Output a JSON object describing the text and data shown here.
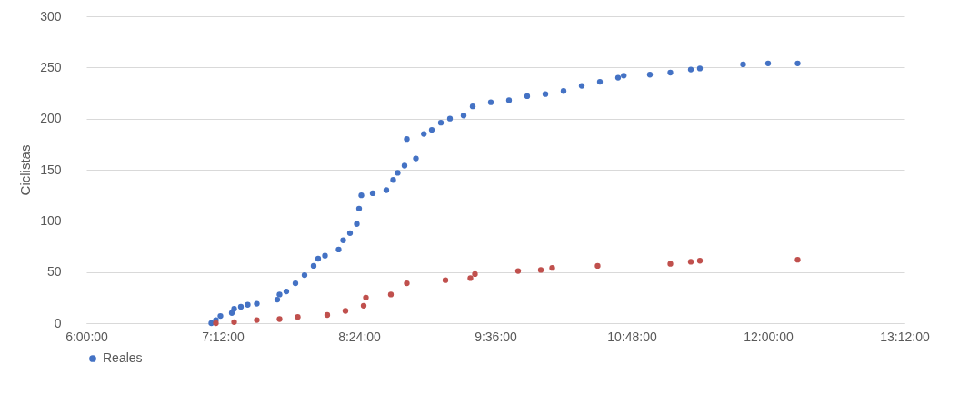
{
  "chart_data": {
    "type": "scatter",
    "ylabel": "Ciclistas",
    "xlim": [
      6,
      13.2
    ],
    "xticks": [
      {
        "value": 6,
        "label": "6:00:00"
      },
      {
        "value": 7.2,
        "label": "7:12:00"
      },
      {
        "value": 8.4,
        "label": "8:24:00"
      },
      {
        "value": 9.6,
        "label": "9:36:00"
      },
      {
        "value": 10.8,
        "label": "10:48:00"
      },
      {
        "value": 12,
        "label": "12:00:00"
      },
      {
        "value": 13.2,
        "label": "13:12:00"
      }
    ],
    "ylim": [
      0,
      300
    ],
    "yticks": [
      0,
      50,
      100,
      150,
      200,
      250,
      300
    ],
    "grid": "y",
    "legend": "bottom",
    "marker": "circle",
    "series": [
      {
        "name": "Reales",
        "color": "#4472c4",
        "x": [
          7.1,
          7.14,
          7.18,
          7.28,
          7.3,
          7.36,
          7.42,
          7.5,
          7.68,
          7.7,
          7.76,
          7.84,
          7.92,
          8.0,
          8.04,
          8.1,
          8.22,
          8.26,
          8.32,
          8.38,
          8.4,
          8.42,
          8.52,
          8.64,
          8.7,
          8.74,
          8.8,
          8.82,
          8.9,
          8.97,
          9.04,
          9.12,
          9.2,
          9.32,
          9.4,
          9.56,
          9.72,
          9.88,
          10.04,
          10.2,
          10.36,
          10.52,
          10.68,
          10.73,
          10.96,
          11.14,
          11.32,
          11.4,
          11.78,
          12.0,
          12.26
        ],
        "values": [
          0,
          3,
          7,
          10,
          14,
          16,
          18,
          19,
          23,
          28,
          31,
          39,
          47,
          56,
          63,
          66,
          72,
          81,
          88,
          97,
          112,
          125,
          127,
          130,
          140,
          147,
          154,
          180,
          161,
          185,
          189,
          196,
          200,
          203,
          212,
          216,
          218,
          222,
          224,
          227,
          232,
          236,
          240,
          242,
          243,
          245,
          248,
          249,
          253,
          254,
          254
        ]
      },
      {
        "color": "#c0504d",
        "x": [
          7.14,
          7.3,
          7.5,
          7.7,
          7.86,
          8.12,
          8.28,
          8.44,
          8.46,
          8.68,
          8.82,
          9.16,
          9.38,
          9.42,
          9.8,
          10.0,
          10.1,
          10.5,
          11.14,
          11.32,
          11.4,
          12.26
        ],
        "values": [
          0,
          1,
          3,
          4,
          6,
          8,
          12,
          17,
          25,
          28,
          39,
          42,
          44,
          48,
          51,
          52,
          54,
          56,
          58,
          60,
          61,
          62
        ]
      }
    ]
  }
}
